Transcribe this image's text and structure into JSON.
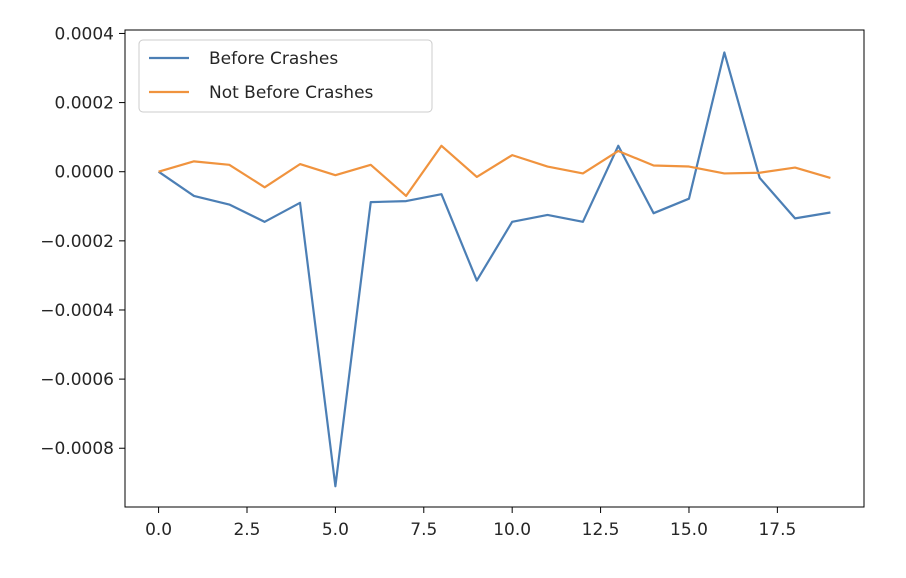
{
  "chart_data": {
    "type": "line",
    "title": "",
    "xlabel": "",
    "ylabel": "",
    "xlim": [
      -0.95,
      19.95
    ],
    "ylim": [
      -0.00097,
      0.00041
    ],
    "x_ticks": [
      0.0,
      2.5,
      5.0,
      7.5,
      10.0,
      12.5,
      15.0,
      17.5
    ],
    "x_tick_labels": [
      "0.0",
      "2.5",
      "5.0",
      "7.5",
      "10.0",
      "12.5",
      "15.0",
      "17.5"
    ],
    "y_ticks": [
      0.0004,
      0.0002,
      0.0,
      -0.0002,
      -0.0004,
      -0.0006,
      -0.0008
    ],
    "y_tick_labels": [
      "0.0004",
      "0.0002",
      "0.0000",
      "−0.0002",
      "−0.0004",
      "−0.0006",
      "−0.0008"
    ],
    "grid": false,
    "legend_position": "top-left",
    "x": [
      0,
      1,
      2,
      3,
      4,
      5,
      6,
      7,
      8,
      9,
      10,
      11,
      12,
      13,
      14,
      15,
      16,
      17,
      18,
      19
    ],
    "series": [
      {
        "name": "Before Crashes",
        "color": "#4c7fb5",
        "values": [
          0.0,
          -7e-05,
          -9.5e-05,
          -0.000145,
          -9e-05,
          -0.00091,
          -8.8e-05,
          -8.5e-05,
          -6.5e-05,
          -0.000315,
          -0.000145,
          -0.000125,
          -0.000145,
          7.5e-05,
          -0.00012,
          -7.8e-05,
          0.000345,
          -1.8e-05,
          -0.000135,
          -0.000118
        ]
      },
      {
        "name": "Not Before Crashes",
        "color": "#f0933e",
        "values": [
          0.0,
          3e-05,
          2e-05,
          -4.5e-05,
          2.2e-05,
          -1e-05,
          2e-05,
          -7e-05,
          7.5e-05,
          -1.5e-05,
          4.8e-05,
          1.5e-05,
          -5e-06,
          6e-05,
          1.8e-05,
          1.5e-05,
          -5e-06,
          -3e-06,
          1.2e-05,
          -1.8e-05
        ]
      }
    ]
  }
}
